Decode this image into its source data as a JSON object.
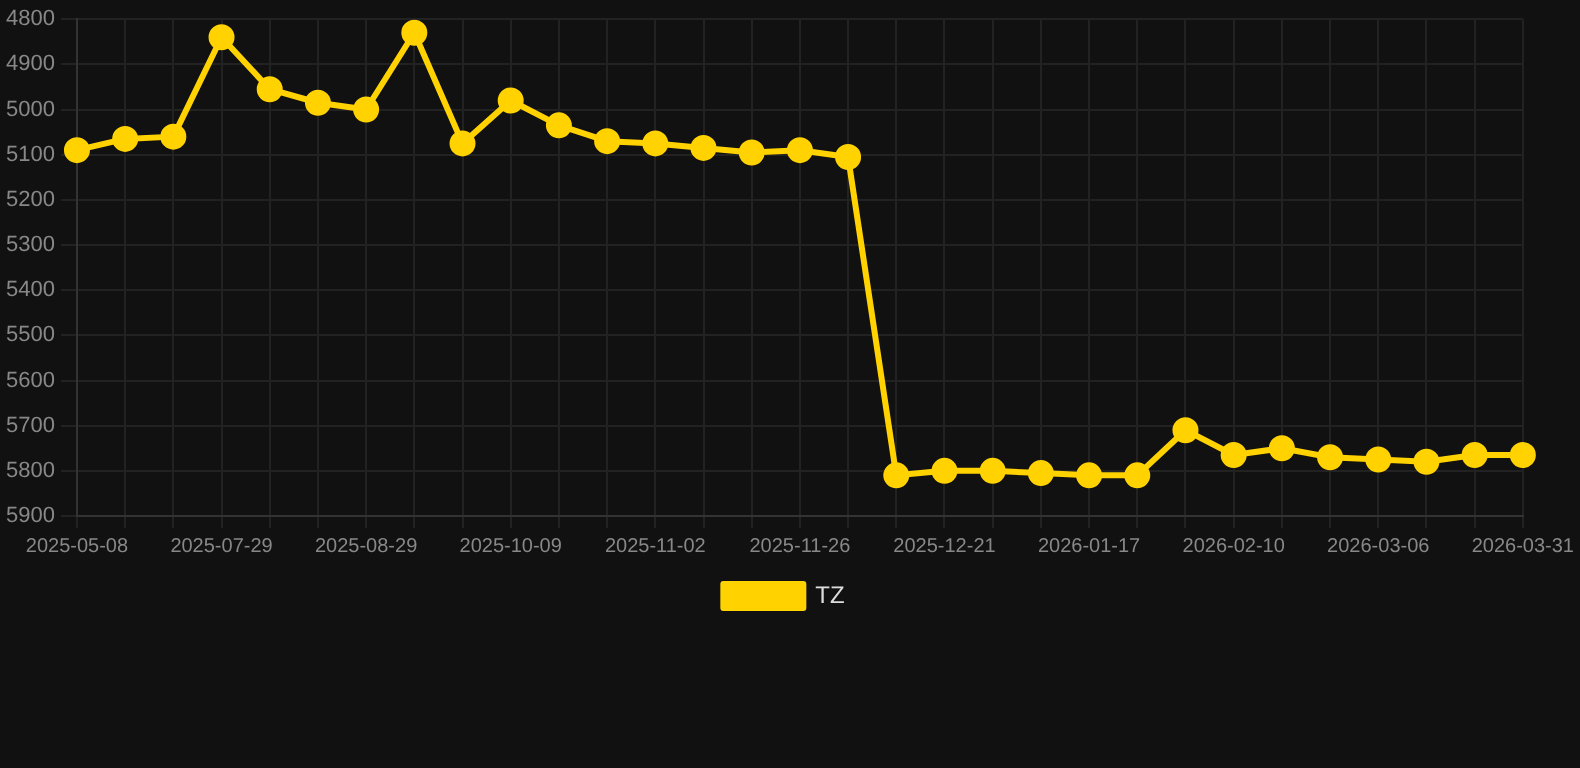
{
  "chart_data": {
    "type": "line",
    "categories": [
      "2025-05-08",
      null,
      null,
      "2025-07-29",
      null,
      null,
      "2025-08-29",
      null,
      null,
      "2025-10-09",
      null,
      null,
      "2025-11-02",
      null,
      null,
      "2025-11-26",
      null,
      null,
      "2025-12-21",
      null,
      null,
      "2026-01-17",
      null,
      null,
      "2026-02-10",
      null,
      null,
      "2026-03-06",
      null,
      null,
      "2026-03-31"
    ],
    "series": [
      {
        "name": "TZ",
        "color": "#ffd200",
        "values": [
          5090,
          5065,
          5060,
          4840,
          4955,
          4985,
          5000,
          4830,
          5075,
          4980,
          5035,
          5070,
          5075,
          5085,
          5095,
          5090,
          5105,
          5810,
          5800,
          5800,
          5805,
          5810,
          5810,
          5710,
          5765,
          5750,
          5770,
          5775,
          5780,
          5765,
          5765
        ]
      }
    ],
    "ylim": [
      5900,
      4800
    ],
    "yticks": [
      4800,
      4900,
      5000,
      5100,
      5200,
      5300,
      5400,
      5500,
      5600,
      5700,
      5800,
      5900
    ],
    "grid": true,
    "legend": "bottom",
    "marker": "circle",
    "line_style": "solid"
  }
}
